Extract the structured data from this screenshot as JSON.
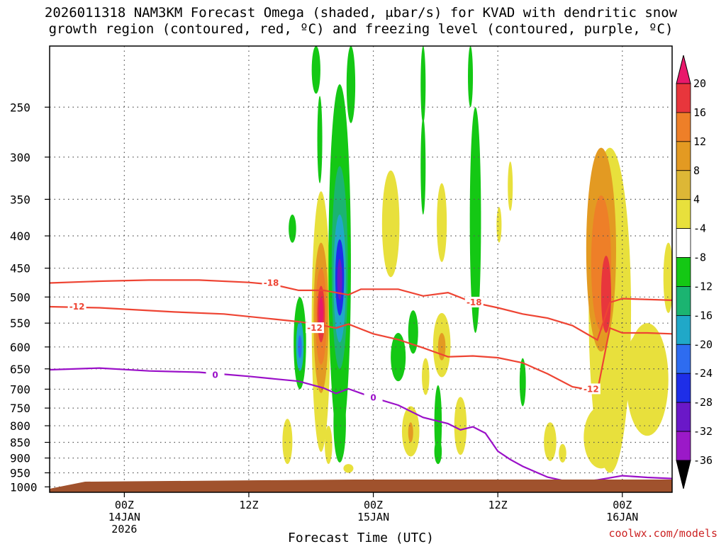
{
  "chart_data": {
    "type": "heatmap",
    "title_line1": "2026011318 NAM3KM Forecast Omega (shaded, μbar/s) for KVAD with dendritic snow",
    "title_line2": "growth region (contoured, red, ºC) and freezing level (contoured, purple, ºC)",
    "xlabel": "Forecast Time (UTC)",
    "credit": "coolwx.com/models",
    "x_unit": "forecast hour",
    "xlim": [
      -6,
      44
    ],
    "y_unit": "hPa",
    "ylim": [
      1020,
      200
    ],
    "y_ticks": [
      250,
      300,
      350,
      400,
      450,
      500,
      550,
      600,
      650,
      700,
      750,
      800,
      850,
      900,
      950,
      1000
    ],
    "x_ticks": [
      {
        "hour": 0,
        "label": "00Z",
        "sub1": "14JAN",
        "sub2": "2026"
      },
      {
        "hour": 10,
        "label": "12Z",
        "sub1": "",
        "sub2": ""
      },
      {
        "hour": 20,
        "label": "00Z",
        "sub1": "15JAN",
        "sub2": ""
      },
      {
        "hour": 30,
        "label": "12Z",
        "sub1": "",
        "sub2": ""
      },
      {
        "hour": 40,
        "label": "00Z",
        "sub1": "16JAN",
        "sub2": ""
      }
    ],
    "colorbar": {
      "labels": [
        "20",
        "16",
        "12",
        "8",
        "4",
        "-4",
        "-8",
        "-12",
        "-16",
        "-20",
        "-24",
        "-28",
        "-32",
        "-36"
      ],
      "colors": [
        "#e8196b",
        "#e8363c",
        "#ee7f28",
        "#e39a22",
        "#ddb736",
        "#e8e03c",
        "#ffffff",
        "#14c814",
        "#1bb471",
        "#20a8c8",
        "#2e6cf0",
        "#1e2ee8",
        "#6a18c8",
        "#9b19c8",
        "#a0a0a0",
        "#000000"
      ]
    },
    "omega_blobs": [
      {
        "x": 18.0,
        "p": 935,
        "rx": 0.4,
        "rp": 15,
        "value": 6
      },
      {
        "x": 13.1,
        "p": 850,
        "rx": 0.4,
        "rp": 70,
        "value": 6
      },
      {
        "x": 15.8,
        "p": 610,
        "rx": 0.75,
        "rp": 270,
        "value": 6
      },
      {
        "x": 15.8,
        "p": 560,
        "rx": 0.6,
        "rp": 150,
        "value": 10
      },
      {
        "x": 15.8,
        "p": 545,
        "rx": 0.45,
        "rp": 95,
        "value": 14
      },
      {
        "x": 15.8,
        "p": 535,
        "rx": 0.3,
        "rp": 55,
        "value": 18
      },
      {
        "x": 15.8,
        "p": 528,
        "rx": 0.18,
        "rp": 28,
        "value": 22
      },
      {
        "x": 15.7,
        "p": 285,
        "rx": 0.2,
        "rp": 45,
        "value": -6
      },
      {
        "x": 14.1,
        "p": 600,
        "rx": 0.5,
        "rp": 100,
        "value": -6
      },
      {
        "x": 14.1,
        "p": 600,
        "rx": 0.3,
        "rp": 55,
        "value": -14
      },
      {
        "x": 14.1,
        "p": 600,
        "rx": 0.15,
        "rp": 25,
        "value": -18
      },
      {
        "x": 17.3,
        "p": 540,
        "rx": 0.9,
        "rp": 310,
        "value": -6
      },
      {
        "x": 17.3,
        "p": 480,
        "rx": 0.65,
        "rp": 170,
        "value": -10
      },
      {
        "x": 17.3,
        "p": 480,
        "rx": 0.5,
        "rp": 110,
        "value": -14
      },
      {
        "x": 17.3,
        "p": 470,
        "rx": 0.35,
        "rp": 65,
        "value": -22
      },
      {
        "x": 17.3,
        "p": 470,
        "rx": 0.2,
        "rp": 35,
        "value": -26
      },
      {
        "x": 18.2,
        "p": 200,
        "rx": 0.35,
        "rp": 65,
        "value": -6
      },
      {
        "x": 17.3,
        "p": 800,
        "rx": 0.5,
        "rp": 115,
        "value": -6
      },
      {
        "x": 16.4,
        "p": 860,
        "rx": 0.3,
        "rp": 60,
        "value": 6
      },
      {
        "x": 13.5,
        "p": 390,
        "rx": 0.3,
        "rp": 20,
        "value": -6
      },
      {
        "x": 15.4,
        "p": 210,
        "rx": 0.35,
        "rp": 28,
        "value": -6
      },
      {
        "x": 21.4,
        "p": 390,
        "rx": 0.7,
        "rp": 75,
        "value": 6
      },
      {
        "x": 22.0,
        "p": 625,
        "rx": 0.6,
        "rp": 55,
        "value": -6
      },
      {
        "x": 23.2,
        "p": 570,
        "rx": 0.4,
        "rp": 45,
        "value": -6
      },
      {
        "x": 23.0,
        "p": 820,
        "rx": 0.7,
        "rp": 75,
        "value": 6
      },
      {
        "x": 23.0,
        "p": 820,
        "rx": 0.2,
        "rp": 30,
        "value": 10
      },
      {
        "x": 25.5,
        "p": 600,
        "rx": 0.7,
        "rp": 70,
        "value": 6
      },
      {
        "x": 25.5,
        "p": 600,
        "rx": 0.3,
        "rp": 30,
        "value": 10
      },
      {
        "x": 24.2,
        "p": 670,
        "rx": 0.3,
        "rp": 45,
        "value": 6
      },
      {
        "x": 25.2,
        "p": 800,
        "rx": 0.3,
        "rp": 110,
        "value": -6
      },
      {
        "x": 25.2,
        "p": 880,
        "rx": 0.3,
        "rp": 40,
        "value": -6
      },
      {
        "x": 24.0,
        "p": 215,
        "rx": 0.2,
        "rp": 50,
        "value": -6
      },
      {
        "x": 24.0,
        "p": 315,
        "rx": 0.2,
        "rp": 55,
        "value": -6
      },
      {
        "x": 25.5,
        "p": 385,
        "rx": 0.4,
        "rp": 55,
        "value": 6
      },
      {
        "x": 28.2,
        "p": 410,
        "rx": 0.45,
        "rp": 160,
        "value": -6
      },
      {
        "x": 27.0,
        "p": 805,
        "rx": 0.5,
        "rp": 85,
        "value": 6
      },
      {
        "x": 27.8,
        "p": 215,
        "rx": 0.2,
        "rp": 35,
        "value": -6
      },
      {
        "x": 30.1,
        "p": 385,
        "rx": 0.2,
        "rp": 25,
        "value": 6
      },
      {
        "x": 31.0,
        "p": 335,
        "rx": 0.2,
        "rp": 30,
        "value": 6
      },
      {
        "x": 32.0,
        "p": 685,
        "rx": 0.25,
        "rp": 60,
        "value": -6
      },
      {
        "x": 34.2,
        "p": 850,
        "rx": 0.5,
        "rp": 60,
        "value": 6
      },
      {
        "x": 35.2,
        "p": 885,
        "rx": 0.3,
        "rp": 30,
        "value": 6
      },
      {
        "x": 39.0,
        "p": 620,
        "rx": 1.7,
        "rp": 330,
        "value": 6
      },
      {
        "x": 38.3,
        "p": 840,
        "rx": 1.4,
        "rp": 95,
        "value": 6
      },
      {
        "x": 38.3,
        "p": 450,
        "rx": 1.2,
        "rp": 160,
        "value": 10
      },
      {
        "x": 38.3,
        "p": 455,
        "rx": 0.8,
        "rp": 110,
        "value": 14
      },
      {
        "x": 38.7,
        "p": 500,
        "rx": 0.4,
        "rp": 70,
        "value": 16
      },
      {
        "x": 42.0,
        "p": 690,
        "rx": 1.7,
        "rp": 140,
        "value": 6
      },
      {
        "x": 41.2,
        "p": 630,
        "rx": 0.8,
        "rp": 55,
        "value": 6
      },
      {
        "x": 43.7,
        "p": 470,
        "rx": 0.4,
        "rp": 60,
        "value": 6
      }
    ],
    "contours": [
      {
        "name": "minus18",
        "color": "#ee4433",
        "label": "-18",
        "label_at": {
          "x": 11.8,
          "p": 475
        },
        "label_at2": {
          "x": 28.1,
          "p": 510
        },
        "points": [
          [
            -6,
            475
          ],
          [
            -2,
            472
          ],
          [
            2,
            470
          ],
          [
            6,
            470
          ],
          [
            10,
            474
          ],
          [
            12,
            478
          ],
          [
            14,
            488
          ],
          [
            16,
            488
          ],
          [
            18,
            496
          ],
          [
            19,
            486
          ],
          [
            22,
            486
          ],
          [
            24,
            498
          ],
          [
            26,
            492
          ],
          [
            28,
            510
          ],
          [
            30,
            520
          ],
          [
            32,
            532
          ],
          [
            34,
            540
          ],
          [
            36,
            555
          ],
          [
            38,
            585
          ],
          [
            39,
            510
          ],
          [
            40,
            503
          ],
          [
            44,
            506
          ]
        ]
      },
      {
        "name": "minus12",
        "color": "#ee4433",
        "label": "-12",
        "label_at": {
          "x": -3.8,
          "p": 518
        },
        "label_at2": {
          "x": 37.5,
          "p": 700
        },
        "label_at3": {
          "x": 15.3,
          "p": 560
        },
        "points": [
          [
            -6,
            518
          ],
          [
            -2,
            520
          ],
          [
            4,
            528
          ],
          [
            8,
            532
          ],
          [
            12,
            542
          ],
          [
            14,
            547
          ],
          [
            16,
            555
          ],
          [
            17,
            560
          ],
          [
            18,
            552
          ],
          [
            20,
            572
          ],
          [
            22,
            584
          ],
          [
            24,
            602
          ],
          [
            26,
            622
          ],
          [
            28,
            620
          ],
          [
            30,
            624
          ],
          [
            32,
            636
          ],
          [
            34,
            662
          ],
          [
            36,
            694
          ],
          [
            38,
            705
          ],
          [
            39,
            560
          ],
          [
            40,
            570
          ],
          [
            42,
            570
          ],
          [
            44,
            572
          ]
        ]
      },
      {
        "name": "zero",
        "color": "#9a10c8",
        "label": "0",
        "label_at": {
          "x": 7.3,
          "p": 665
        },
        "label_at2": {
          "x": 20.0,
          "p": 722
        },
        "points": [
          [
            -6,
            652
          ],
          [
            -2,
            648
          ],
          [
            2,
            655
          ],
          [
            6,
            658
          ],
          [
            8,
            663
          ],
          [
            10,
            668
          ],
          [
            12,
            674
          ],
          [
            14,
            680
          ],
          [
            16,
            697
          ],
          [
            17,
            711
          ],
          [
            18,
            699
          ],
          [
            20,
            722
          ],
          [
            22,
            742
          ],
          [
            24,
            776
          ],
          [
            26,
            794
          ],
          [
            27,
            812
          ],
          [
            28,
            803
          ],
          [
            29,
            822
          ],
          [
            30,
            878
          ],
          [
            31,
            905
          ],
          [
            32,
            928
          ],
          [
            34,
            965
          ],
          [
            36,
            985
          ],
          [
            38,
            975
          ],
          [
            40,
            960
          ],
          [
            42,
            966
          ],
          [
            44,
            970
          ]
        ]
      }
    ]
  }
}
